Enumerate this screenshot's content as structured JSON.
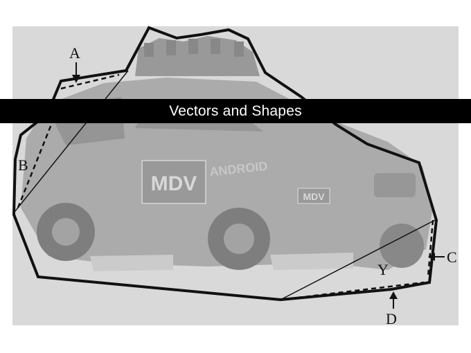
{
  "slide": {
    "title": "Vectors and Shapes"
  },
  "figure": {
    "subject": "car-with-roof-sensors",
    "car_text": {
      "door_logo": "MDV",
      "fender_text": "ANDROID",
      "front_logo": "MDV"
    },
    "labels": {
      "a": "A",
      "b": "B",
      "c": "C",
      "d": "D",
      "y": "Y"
    },
    "colors": {
      "outline": "#111111",
      "panel": "#d9d9d9",
      "car_body": "#a6a6a6",
      "title_bar": "#000000",
      "title_text": "#ffffff"
    }
  }
}
